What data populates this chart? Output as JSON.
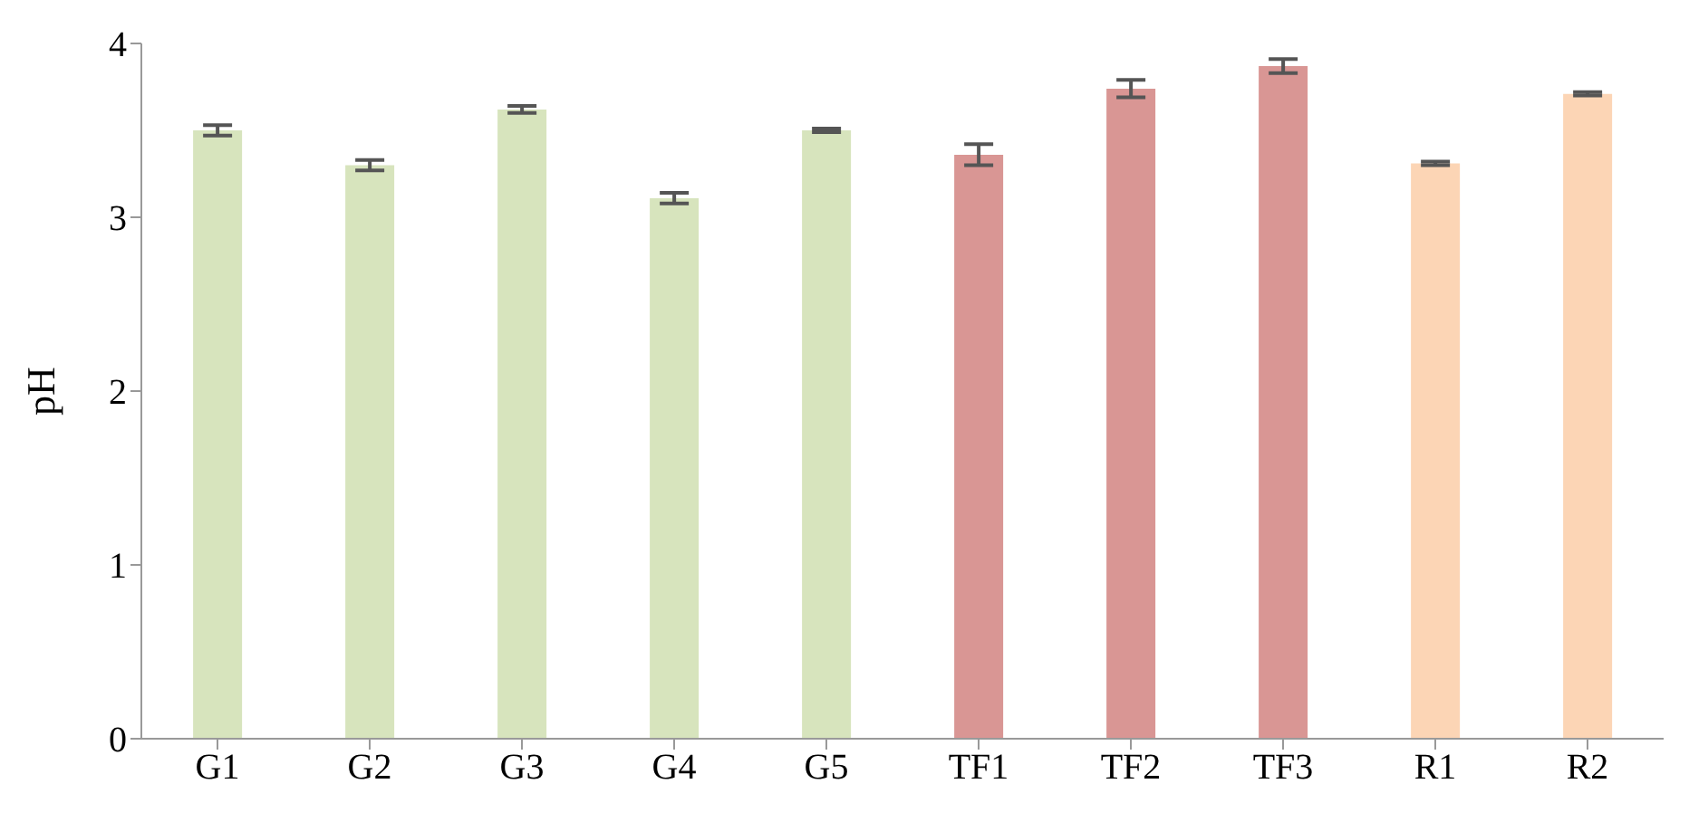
{
  "chart_data": {
    "type": "bar",
    "ylabel": "pH",
    "categories": [
      "G1",
      "G2",
      "G3",
      "G4",
      "G5",
      "TF1",
      "TF2",
      "TF3",
      "R1",
      "R2"
    ],
    "values": [
      3.5,
      3.3,
      3.62,
      3.11,
      3.5,
      3.36,
      3.74,
      3.87,
      3.31,
      3.71
    ],
    "errors": [
      0.03,
      0.03,
      0.02,
      0.03,
      0.01,
      0.06,
      0.05,
      0.04,
      0.01,
      0.01
    ],
    "colors": [
      "#d7e4bd",
      "#d7e4bd",
      "#d7e4bd",
      "#d7e4bd",
      "#d7e4bd",
      "#d99694",
      "#d99694",
      "#d99694",
      "#fcd5b5",
      "#fcd5b5"
    ],
    "ylim": [
      0,
      4
    ],
    "yticks": [
      0,
      1,
      2,
      3,
      4
    ],
    "grid": false,
    "legend": false
  }
}
